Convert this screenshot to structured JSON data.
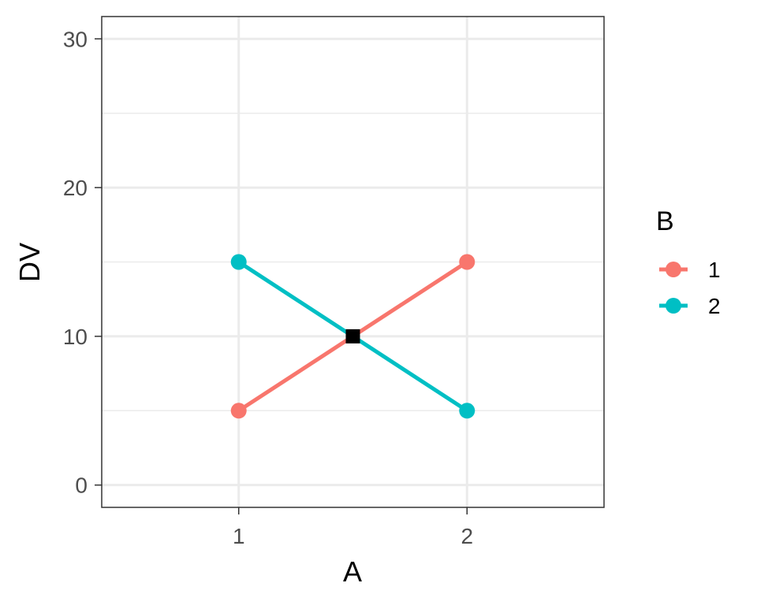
{
  "chart_data": {
    "type": "line",
    "xlabel": "A",
    "ylabel": "DV",
    "categories": [
      "1",
      "2"
    ],
    "x": [
      1,
      2
    ],
    "xlim": [
      0.4,
      2.6
    ],
    "ylim": [
      -1.5,
      31.5
    ],
    "yticks": [
      0,
      10,
      20,
      30
    ],
    "xticks": [
      1,
      2
    ],
    "grid": true,
    "legend": {
      "title": "B",
      "position": "right"
    },
    "series": [
      {
        "name": "1",
        "color": "#F8766D",
        "values": [
          5,
          15
        ]
      },
      {
        "name": "2",
        "color": "#00BFC4",
        "values": [
          15,
          5
        ]
      }
    ],
    "marker": {
      "x": 1.5,
      "y": 10,
      "shape": "square",
      "color": "#000000"
    }
  }
}
